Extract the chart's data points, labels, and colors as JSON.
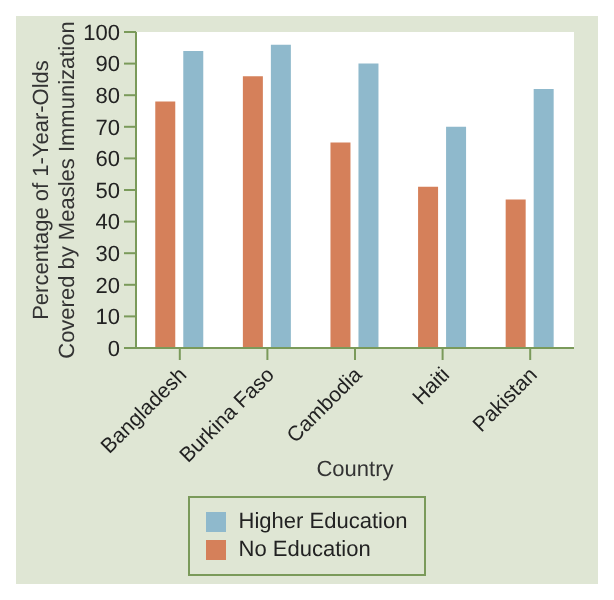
{
  "chart_data": {
    "type": "bar",
    "ylabel": "Percentage of 1-Year-Olds Covered by Measles Immunization",
    "xlabel": "Country",
    "categories": [
      "Bangladesh",
      "Burkina Faso",
      "Cambodia",
      "Haiti",
      "Pakistan"
    ],
    "series": [
      {
        "name": "No Education",
        "color": "#d5805a",
        "values": [
          78,
          86,
          65,
          51,
          47
        ]
      },
      {
        "name": "Higher Education",
        "color": "#8fb9cc",
        "values": [
          94,
          96,
          90,
          70,
          82
        ]
      }
    ],
    "ylim": [
      0,
      100
    ],
    "yticks": [
      0,
      10,
      20,
      30,
      40,
      50,
      60,
      70,
      80,
      90,
      100
    ],
    "grid": false,
    "legend": "bottom"
  }
}
